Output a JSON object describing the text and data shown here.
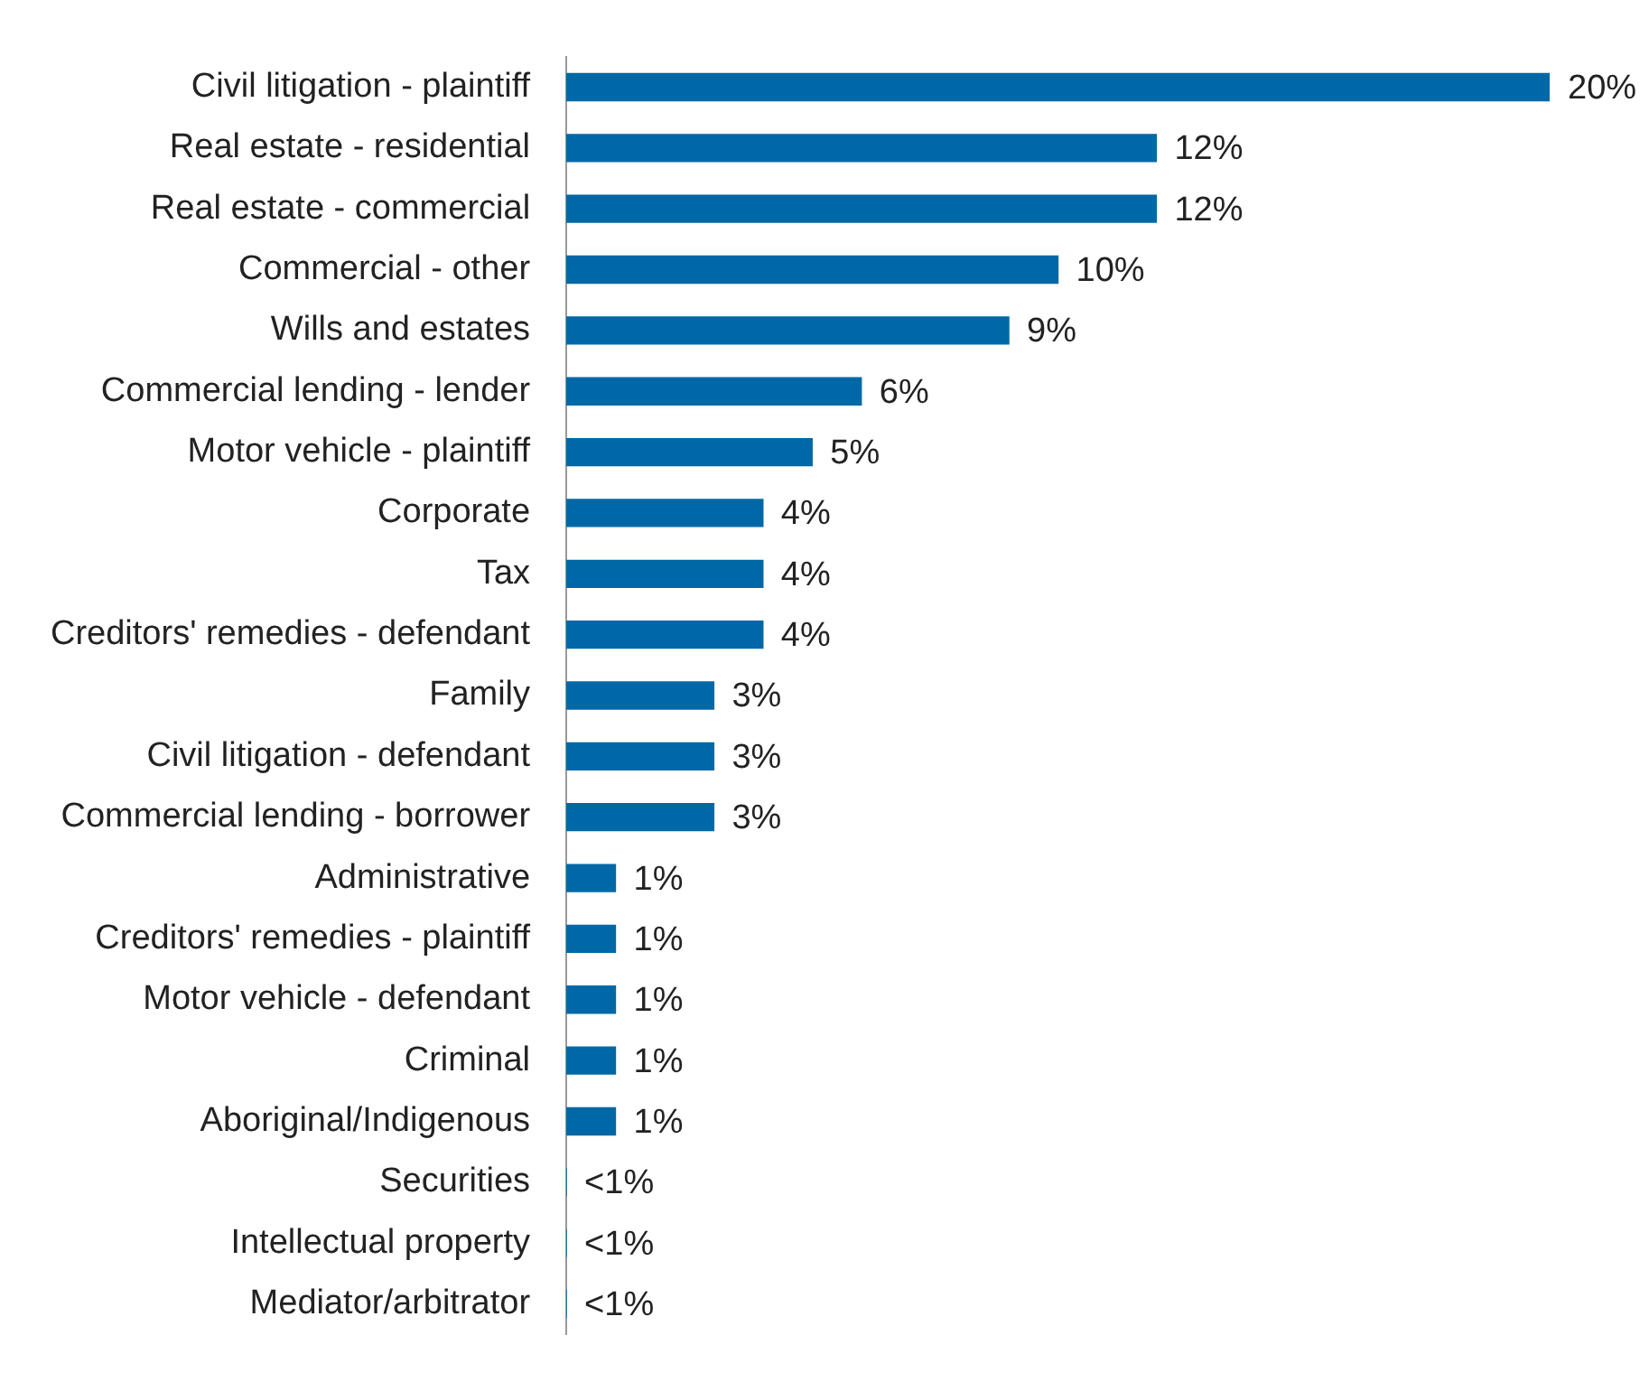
{
  "chart_data": {
    "type": "bar",
    "orientation": "horizontal",
    "color": "#0068a6",
    "categories": [
      "Civil litigation - plaintiff",
      "Real estate - residential",
      "Real estate - commercial",
      "Commercial - other",
      "Wills and estates",
      "Commercial lending - lender",
      "Motor vehicle - plaintiff",
      "Corporate",
      "Tax",
      "Creditors' remedies - defendant",
      "Family",
      "Civil litigation - defendant",
      "Commercial lending - borrower",
      "Administrative",
      "Creditors' remedies - plaintiff",
      "Motor vehicle - defendant",
      "Criminal",
      "Aboriginal/Indigenous",
      "Securities",
      "Intellectual property",
      "Mediator/arbitrator"
    ],
    "values": [
      20,
      12,
      12,
      10,
      9,
      6,
      5,
      4,
      4,
      4,
      3,
      3,
      3,
      1,
      1,
      1,
      1,
      1,
      0,
      0,
      0
    ],
    "value_labels": [
      "20%",
      "12%",
      "12%",
      "10%",
      "9%",
      "6%",
      "5%",
      "4%",
      "4%",
      "4%",
      "3%",
      "3%",
      "3%",
      "1%",
      "1%",
      "1%",
      "1%",
      "1%",
      "<1%",
      "<1%",
      "<1%"
    ]
  }
}
